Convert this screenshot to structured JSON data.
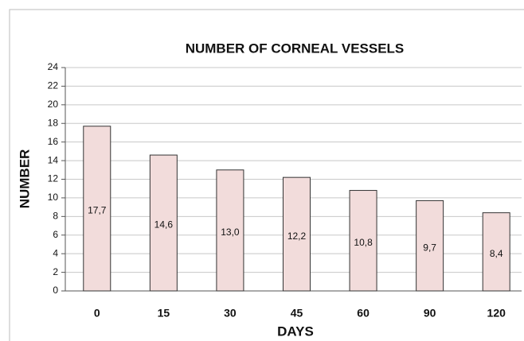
{
  "chart_data": {
    "type": "bar",
    "title": "NUMBER OF CORNEAL VESSELS",
    "x_label": "DAYS",
    "y_label": "NUMBER",
    "categories": [
      "0",
      "15",
      "30",
      "45",
      "60",
      "90",
      "120"
    ],
    "values": [
      17.7,
      14.6,
      13.0,
      12.2,
      10.8,
      9.7,
      8.4
    ],
    "value_labels": [
      "17,7",
      "14,6",
      "13,0",
      "12,2",
      "10,8",
      "9,7",
      "8,4"
    ],
    "color": "#f2dcdb",
    "ylim": [
      0,
      24
    ],
    "yticks": [
      0,
      2,
      4,
      6,
      8,
      10,
      12,
      14,
      16,
      18,
      20,
      22,
      24
    ],
    "grid": true
  }
}
